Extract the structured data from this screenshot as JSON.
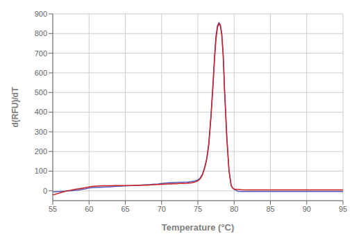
{
  "chart_data": {
    "type": "line",
    "xlabel": "Temperature (°C)",
    "ylabel": "d(RFU)/dT",
    "x": [
      55.0,
      55.3,
      55.6,
      56.0,
      56.5,
      57.0,
      57.5,
      58.0,
      58.5,
      59.0,
      59.5,
      60.0,
      60.5,
      61.0,
      61.5,
      62.0,
      62.5,
      63.0,
      63.5,
      64.0,
      64.5,
      65.0,
      65.5,
      66.0,
      66.5,
      67.0,
      67.5,
      68.0,
      68.5,
      69.0,
      69.5,
      70.0,
      70.5,
      71.0,
      71.5,
      72.0,
      72.5,
      73.0,
      73.5,
      74.0,
      74.3,
      74.6,
      75.0,
      75.3,
      75.6,
      75.9,
      76.2,
      76.5,
      76.8,
      77.1,
      77.3,
      77.5,
      77.7,
      77.9,
      78.1,
      78.3,
      78.5,
      78.7,
      79.0,
      79.3,
      79.6,
      79.9,
      80.0,
      80.5,
      81.0,
      82.0,
      83.0,
      84.0,
      85.0,
      86.0,
      87.0,
      88.0,
      89.0,
      90.0,
      91.0,
      92.0,
      93.0,
      94.0,
      95.0
    ],
    "series": [
      {
        "color": "#5555bb",
        "values": [
          -5,
          -5,
          -4,
          -3,
          -2,
          -1,
          0,
          2,
          4,
          7,
          10,
          14,
          16,
          17,
          18,
          19,
          20,
          21,
          22,
          23,
          24,
          25,
          26,
          27,
          28,
          29,
          30,
          31,
          32,
          34,
          35,
          37,
          39,
          41,
          42,
          43,
          44,
          44,
          44,
          46,
          48,
          50,
          55,
          65,
          82,
          115,
          160,
          240,
          380,
          555,
          685,
          790,
          840,
          855,
          845,
          800,
          690,
          500,
          270,
          100,
          25,
          10,
          8,
          -2,
          -3,
          -3,
          -3,
          -3,
          -3,
          -3,
          -3,
          -3,
          -3,
          -3,
          -3,
          -3,
          -3,
          -3,
          -3
        ]
      },
      {
        "color": "#cc2222",
        "values": [
          -20,
          -18,
          -15,
          -10,
          -5,
          0,
          3,
          7,
          10,
          13,
          16,
          20,
          22,
          24,
          25,
          26,
          26,
          26,
          27,
          27,
          27,
          27,
          27,
          27,
          28,
          28,
          29,
          29,
          30,
          31,
          32,
          33,
          34,
          35,
          36,
          36,
          37,
          37,
          38,
          40,
          42,
          45,
          50,
          60,
          78,
          110,
          155,
          230,
          370,
          540,
          670,
          770,
          830,
          850,
          840,
          790,
          680,
          490,
          260,
          100,
          25,
          10,
          8,
          7,
          6,
          5,
          5,
          5,
          5,
          5,
          5,
          5,
          5,
          5,
          5,
          5,
          5,
          5,
          5
        ]
      }
    ],
    "xlim": [
      55,
      95
    ],
    "ylim": [
      -50,
      900
    ],
    "xticks": [
      55,
      60,
      65,
      70,
      75,
      80,
      85,
      90,
      95
    ],
    "yticks": [
      0,
      100,
      200,
      300,
      400,
      500,
      600,
      700,
      800,
      900
    ],
    "grid": true
  }
}
